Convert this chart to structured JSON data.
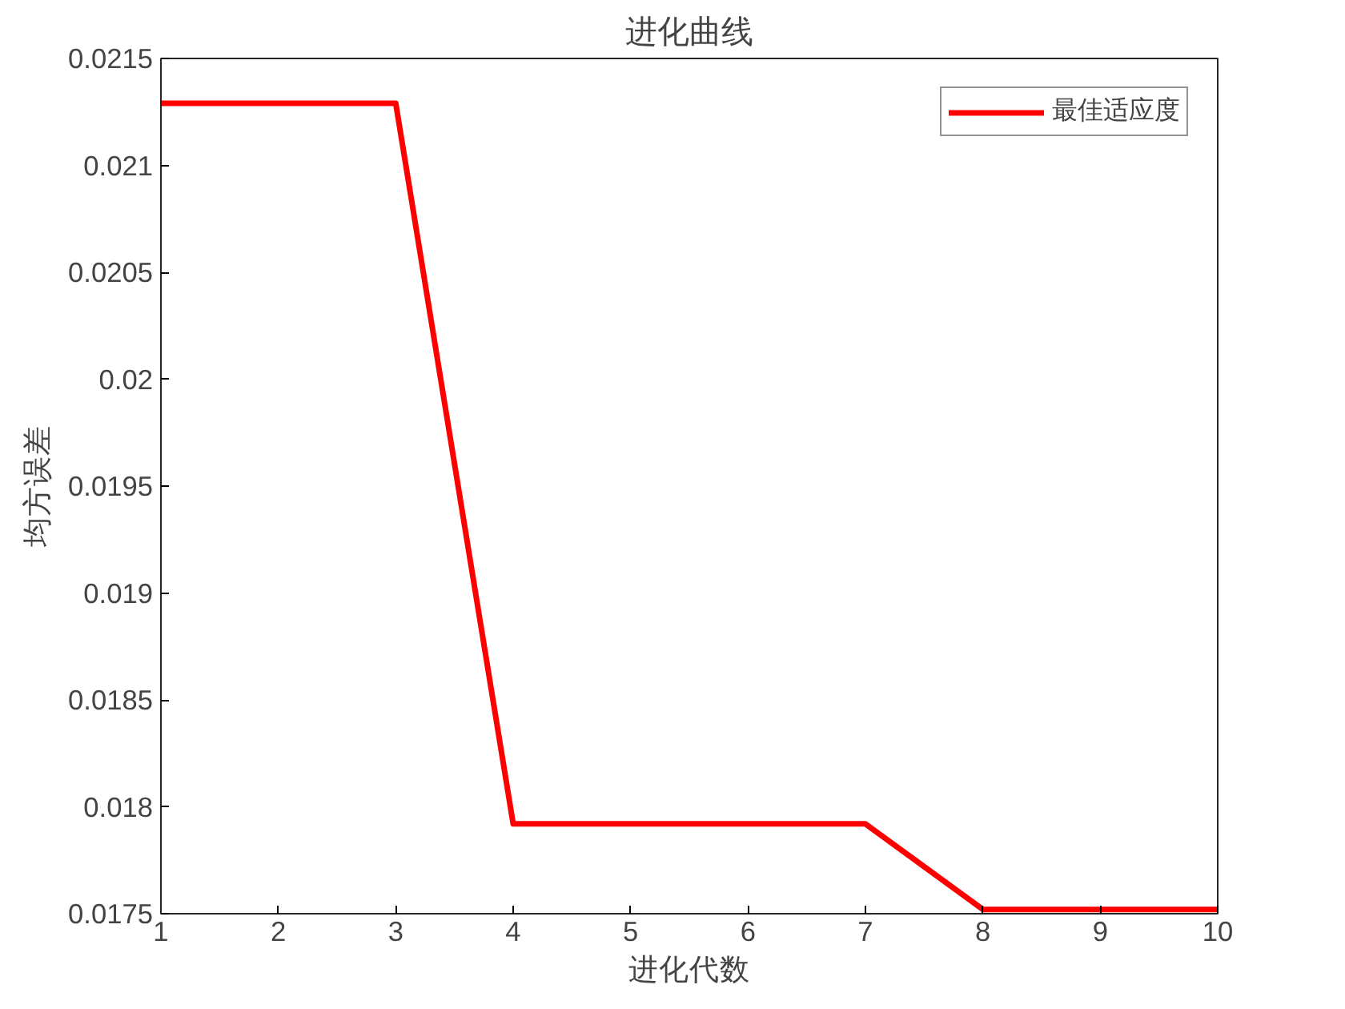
{
  "chart_data": {
    "type": "line",
    "title": "进化曲线",
    "xlabel": "进化代数",
    "ylabel": "均方误差",
    "x": [
      1,
      2,
      3,
      4,
      5,
      6,
      7,
      8,
      9,
      10
    ],
    "series": [
      {
        "name": "最佳适应度",
        "color": "#ff0000",
        "values": [
          0.02129,
          0.02129,
          0.02129,
          0.01792,
          0.01792,
          0.01792,
          0.01792,
          0.01752,
          0.01752,
          0.01752
        ]
      }
    ],
    "xlim": [
      1,
      10
    ],
    "xticks": [
      1,
      2,
      3,
      4,
      5,
      6,
      7,
      8,
      9,
      10
    ],
    "ylim": [
      0.0175,
      0.0215
    ],
    "yticks": [
      0.0175,
      0.018,
      0.0185,
      0.019,
      0.0195,
      0.02,
      0.0205,
      0.021,
      0.0215
    ],
    "grid": false,
    "legend": "top right",
    "marker": "none",
    "line_style": "solid"
  }
}
